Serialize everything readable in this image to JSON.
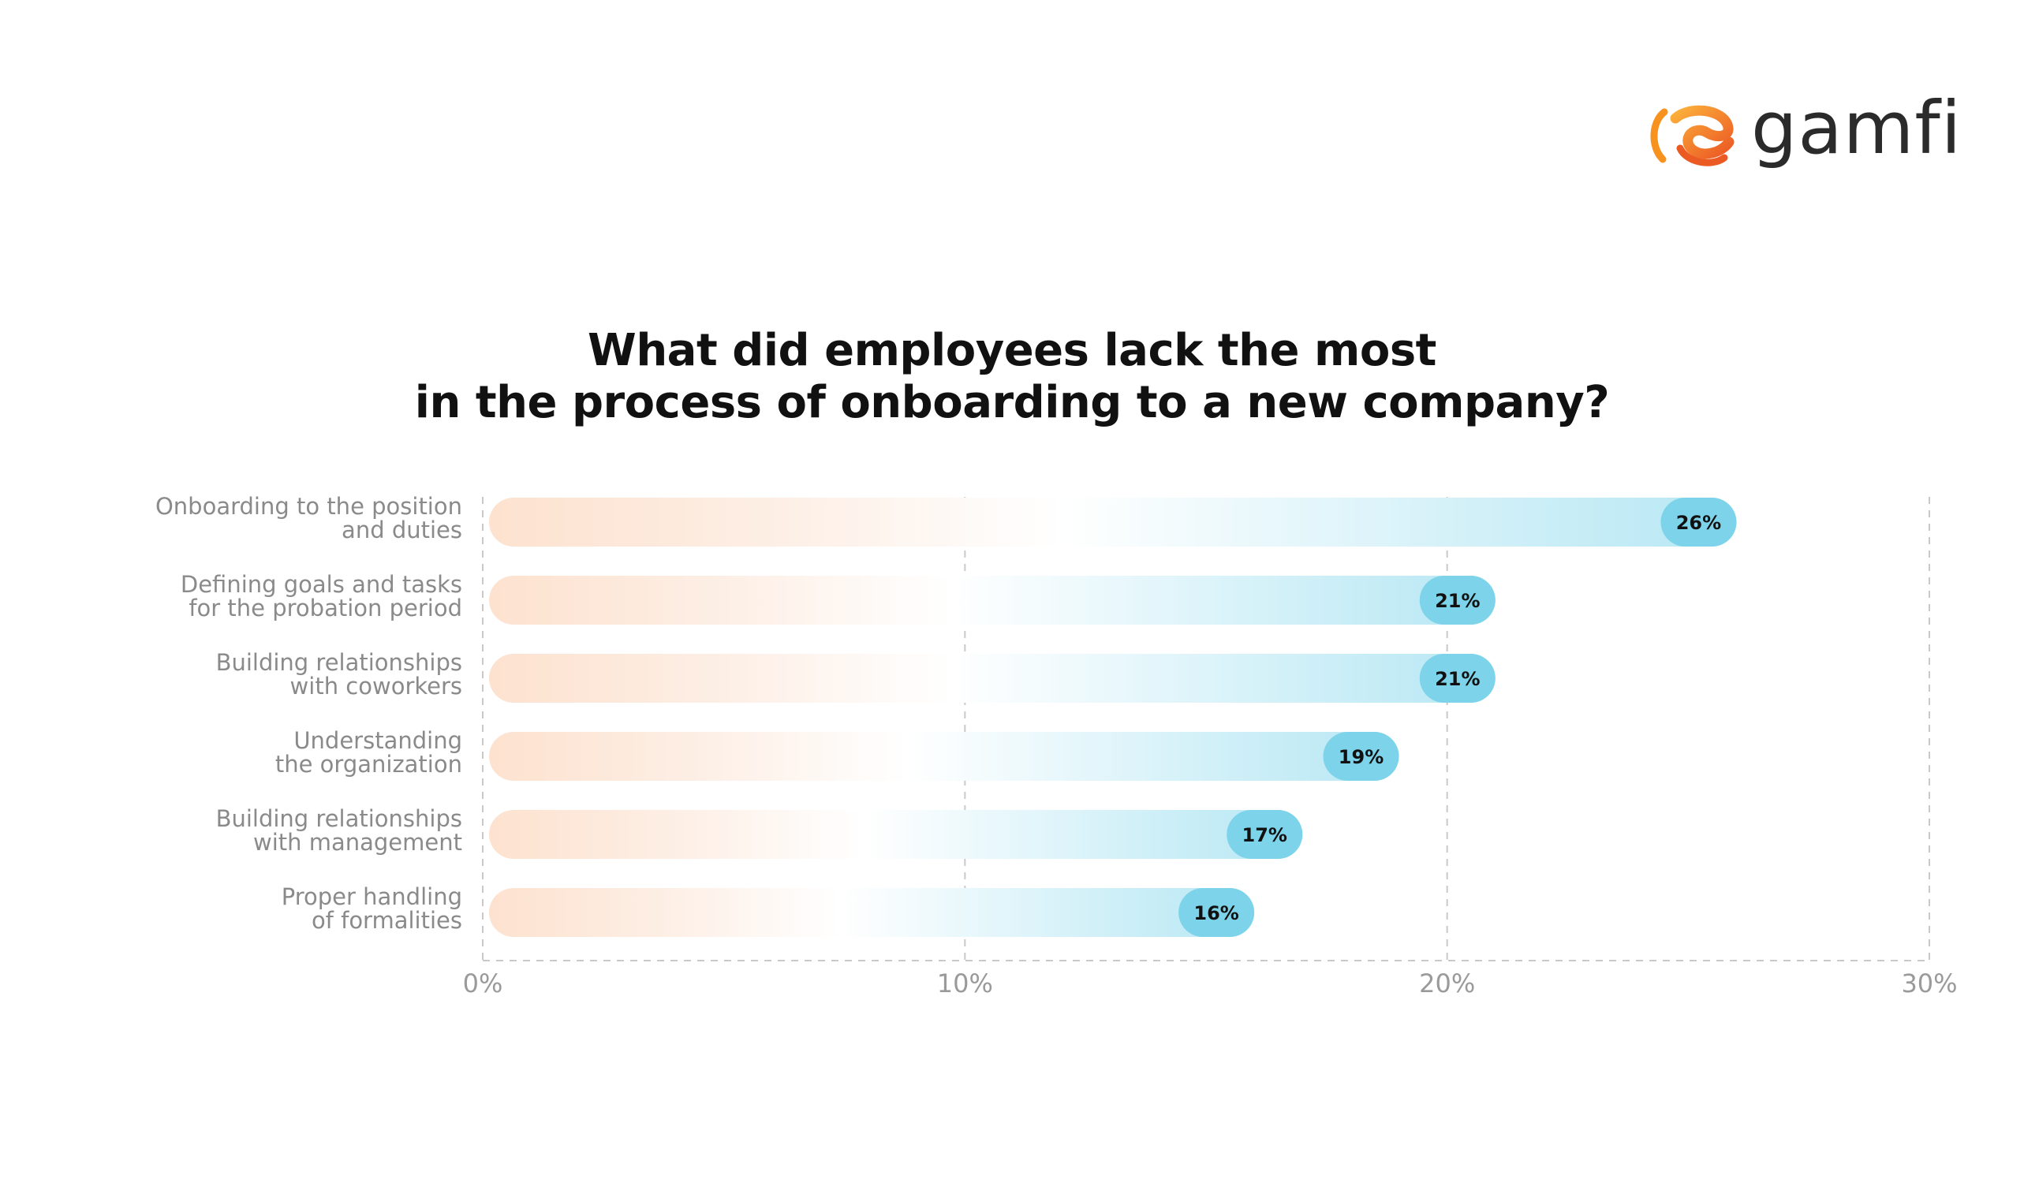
{
  "brand": {
    "name": "gamfi",
    "colors": {
      "mark_orange": "#f7921e",
      "mark_red": "#ec5a24",
      "text": "#2b2b2b"
    }
  },
  "chart_data": {
    "type": "bar",
    "orientation": "horizontal",
    "title": [
      "What did employees lack the most",
      "in the process of onboarding to a new company?"
    ],
    "categories": [
      [
        "Onboarding to the position",
        "and duties"
      ],
      [
        "Defining goals and tasks",
        "for the probation period"
      ],
      [
        "Building relationships",
        "with coworkers"
      ],
      [
        "Understanding",
        "the organization"
      ],
      [
        "Building relationships",
        "with management"
      ],
      [
        "Proper handling",
        "of formalities"
      ]
    ],
    "values": [
      26,
      21,
      21,
      19,
      17,
      16
    ],
    "value_labels": [
      "26%",
      "21%",
      "21%",
      "19%",
      "17%",
      "16%"
    ],
    "xlim": [
      0,
      30
    ],
    "x_ticks": [
      0,
      10,
      20,
      30
    ],
    "x_tick_labels": [
      "0%",
      "10%",
      "20%",
      "30%"
    ],
    "grid": "vertical dashed",
    "colors": {
      "bar_start": "#fde2cf",
      "bar_end": "#b6e7f4",
      "pill": "#7dd3e9",
      "pill_text": "#111111",
      "label_text": "#8a8a8a",
      "grid": "#c9c9c9"
    }
  }
}
